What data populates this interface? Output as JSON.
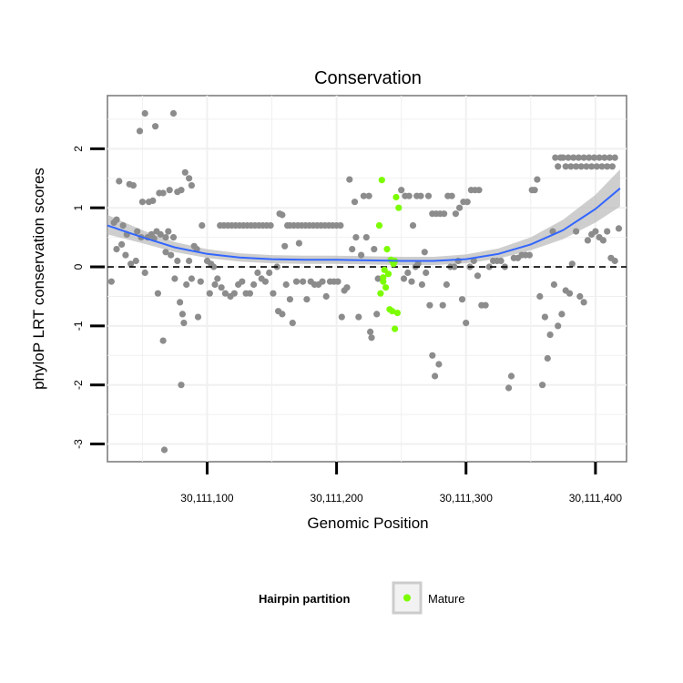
{
  "chart_data": {
    "type": "scatter",
    "title": "Conservation",
    "xlabel": "Genomic Position",
    "ylabel": "phyloP LRT conservation scores",
    "xlim": [
      30111023,
      30111424
    ],
    "ylim": [
      -3.3,
      2.9
    ],
    "x_ticks": [
      30111100,
      30111200,
      30111300,
      30111400
    ],
    "x_tick_labels": [
      "30,111,100",
      "30,111,200",
      "30,111,300",
      "30,111,400"
    ],
    "y_ticks": [
      -3,
      -2,
      -1,
      0,
      1,
      2
    ],
    "y_tick_labels": [
      "-3",
      "-2",
      "-1",
      "0",
      "1",
      "2"
    ],
    "grid": true,
    "reference_line": {
      "y": 0,
      "style": "dashed"
    },
    "legend": {
      "title": "Hairpin partition",
      "placement": "bottom",
      "entries": [
        {
          "label": "Mature",
          "color": "#7cfc00"
        }
      ]
    },
    "colors": {
      "background_points": "#8c8c8c",
      "mature_points": "#7cfc00",
      "smooth_line": "#3366ff",
      "confidence_band": "#bdbdbd"
    },
    "smooth": {
      "x": [
        30111023,
        30111050,
        30111075,
        30111100,
        30111125,
        30111150,
        30111175,
        30111200,
        30111225,
        30111250,
        30111275,
        30111300,
        30111325,
        30111350,
        30111375,
        30111400,
        30111419
      ],
      "y": [
        0.7,
        0.5,
        0.33,
        0.22,
        0.16,
        0.13,
        0.12,
        0.12,
        0.11,
        0.1,
        0.1,
        0.13,
        0.22,
        0.38,
        0.62,
        0.98,
        1.33
      ],
      "lower": [
        0.55,
        0.4,
        0.25,
        0.15,
        0.09,
        0.06,
        0.05,
        0.05,
        0.04,
        0.03,
        0.03,
        0.06,
        0.14,
        0.28,
        0.47,
        0.75,
        1.02
      ],
      "upper": [
        0.88,
        0.62,
        0.42,
        0.3,
        0.23,
        0.2,
        0.19,
        0.19,
        0.18,
        0.17,
        0.17,
        0.21,
        0.31,
        0.5,
        0.8,
        1.22,
        1.65
      ]
    },
    "series": [
      {
        "name": "Mature",
        "points": [
          [
            30111233,
            0.7
          ],
          [
            30111235,
            1.47
          ],
          [
            30111239,
            0.3
          ],
          [
            30111242,
            0.12
          ],
          [
            30111246,
            1.18
          ],
          [
            30111248,
            1.0
          ],
          [
            30111245,
            0.1
          ],
          [
            30111236,
            -0.25
          ],
          [
            30111234,
            -0.45
          ],
          [
            30111238,
            -0.35
          ],
          [
            30111240,
            -0.12
          ],
          [
            30111237,
            -0.05
          ],
          [
            30111241,
            -0.72
          ],
          [
            30111243,
            -0.75
          ],
          [
            30111245,
            -1.05
          ],
          [
            30111247,
            -0.78
          ],
          [
            30111236,
            -0.18
          ],
          [
            30111244,
            0.05
          ]
        ]
      },
      {
        "name": "",
        "points": [
          [
            30111028,
            0.75
          ],
          [
            30111030,
            0.8
          ],
          [
            30111032,
            1.45
          ],
          [
            30111035,
            0.7
          ],
          [
            30111038,
            0.55
          ],
          [
            30111040,
            1.4
          ],
          [
            30111043,
            1.38
          ],
          [
            30111046,
            0.6
          ],
          [
            30111048,
            2.3
          ],
          [
            30111050,
            1.1
          ],
          [
            30111052,
            2.6
          ],
          [
            30111055,
            1.1
          ],
          [
            30111058,
            1.12
          ],
          [
            30111060,
            2.38
          ],
          [
            30111063,
            1.25
          ],
          [
            30111066,
            1.25
          ],
          [
            30111068,
            0.5
          ],
          [
            30111071,
            1.3
          ],
          [
            30111074,
            2.6
          ],
          [
            30111077,
            1.27
          ],
          [
            30111080,
            1.3
          ],
          [
            30111083,
            1.6
          ],
          [
            30111086,
            1.5
          ],
          [
            30111088,
            1.38
          ],
          [
            30111026,
            -0.25
          ],
          [
            30111030,
            0.3
          ],
          [
            30111034,
            0.38
          ],
          [
            30111037,
            0.2
          ],
          [
            30111041,
            0.05
          ],
          [
            30111045,
            0.1
          ],
          [
            30111049,
            0.5
          ],
          [
            30111052,
            -0.1
          ],
          [
            30111054,
            0.5
          ],
          [
            30111057,
            0.55
          ],
          [
            30111059,
            0.48
          ],
          [
            30111061,
            0.6
          ],
          [
            30111062,
            -0.45
          ],
          [
            30111064,
            0.55
          ],
          [
            30111066,
            -1.25
          ],
          [
            30111068,
            0.25
          ],
          [
            30111070,
            0.6
          ],
          [
            30111072,
            0.2
          ],
          [
            30111074,
            0.5
          ],
          [
            30111075,
            -0.2
          ],
          [
            30111077,
            0.1
          ],
          [
            30111079,
            -0.6
          ],
          [
            30111080,
            -2.0
          ],
          [
            30111081,
            -0.8
          ],
          [
            30111082,
            -0.95
          ],
          [
            30111084,
            -0.3
          ],
          [
            30111086,
            0.1
          ],
          [
            30111088,
            -0.2
          ],
          [
            30111090,
            0.35
          ],
          [
            30111092,
            0.3
          ],
          [
            30111093,
            -0.85
          ],
          [
            30111095,
            -0.25
          ],
          [
            30111096,
            0.7
          ],
          [
            30111067,
            -3.1
          ],
          [
            30111100,
            0.1
          ],
          [
            30111103,
            0.05
          ],
          [
            30111105,
            0.0
          ],
          [
            30111108,
            -0.2
          ],
          [
            30111110,
            0.7
          ],
          [
            30111113,
            0.7
          ],
          [
            30111116,
            0.7
          ],
          [
            30111119,
            0.7
          ],
          [
            30111122,
            0.7
          ],
          [
            30111125,
            0.7
          ],
          [
            30111128,
            0.7
          ],
          [
            30111131,
            0.7
          ],
          [
            30111134,
            0.7
          ],
          [
            30111137,
            0.7
          ],
          [
            30111140,
            0.7
          ],
          [
            30111143,
            0.7
          ],
          [
            30111146,
            0.7
          ],
          [
            30111149,
            0.7
          ],
          [
            30111102,
            -0.45
          ],
          [
            30111106,
            -0.3
          ],
          [
            30111111,
            -0.35
          ],
          [
            30111114,
            -0.45
          ],
          [
            30111118,
            -0.5
          ],
          [
            30111121,
            -0.45
          ],
          [
            30111124,
            -0.3
          ],
          [
            30111127,
            -0.25
          ],
          [
            30111130,
            -0.45
          ],
          [
            30111133,
            -0.45
          ],
          [
            30111136,
            -0.3
          ],
          [
            30111139,
            -0.1
          ],
          [
            30111142,
            -0.2
          ],
          [
            30111145,
            -0.25
          ],
          [
            30111148,
            -0.1
          ],
          [
            30111151,
            -0.45
          ],
          [
            30111154,
            0.0
          ],
          [
            30111156,
            0.9
          ],
          [
            30111158,
            0.88
          ],
          [
            30111160,
            0.35
          ],
          [
            30111162,
            0.7
          ],
          [
            30111164,
            0.7
          ],
          [
            30111167,
            0.7
          ],
          [
            30111170,
            0.7
          ],
          [
            30111173,
            0.7
          ],
          [
            30111176,
            0.7
          ],
          [
            30111179,
            0.7
          ],
          [
            30111182,
            0.7
          ],
          [
            30111185,
            0.7
          ],
          [
            30111188,
            0.7
          ],
          [
            30111191,
            0.7
          ],
          [
            30111194,
            0.7
          ],
          [
            30111197,
            0.7
          ],
          [
            30111200,
            0.7
          ],
          [
            30111203,
            0.7
          ],
          [
            30111155,
            -0.75
          ],
          [
            30111158,
            -0.8
          ],
          [
            30111161,
            -0.3
          ],
          [
            30111164,
            -0.55
          ],
          [
            30111166,
            -0.95
          ],
          [
            30111169,
            -0.25
          ],
          [
            30111171,
            0.4
          ],
          [
            30111174,
            -0.25
          ],
          [
            30111177,
            -0.55
          ],
          [
            30111180,
            -0.25
          ],
          [
            30111183,
            -0.3
          ],
          [
            30111186,
            -0.3
          ],
          [
            30111189,
            -0.25
          ],
          [
            30111192,
            -0.5
          ],
          [
            30111195,
            -0.25
          ],
          [
            30111198,
            -0.25
          ],
          [
            30111201,
            -0.25
          ],
          [
            30111204,
            -0.85
          ],
          [
            30111206,
            -0.4
          ],
          [
            30111208,
            -0.35
          ],
          [
            30111210,
            1.48
          ],
          [
            30111212,
            0.3
          ],
          [
            30111214,
            1.1
          ],
          [
            30111215,
            0.5
          ],
          [
            30111217,
            -0.85
          ],
          [
            30111219,
            0.2
          ],
          [
            30111221,
            1.2
          ],
          [
            30111223,
            0.5
          ],
          [
            30111225,
            1.2
          ],
          [
            30111226,
            -1.1
          ],
          [
            30111227,
            -1.2
          ],
          [
            30111229,
            0.3
          ],
          [
            30111231,
            -0.8
          ],
          [
            30111232,
            -0.2
          ],
          [
            30111250,
            1.3
          ],
          [
            30111253,
            1.2
          ],
          [
            30111256,
            1.2
          ],
          [
            30111259,
            0.7
          ],
          [
            30111262,
            1.2
          ],
          [
            30111265,
            1.2
          ],
          [
            30111268,
            0.25
          ],
          [
            30111271,
            1.2
          ],
          [
            30111274,
            0.9
          ],
          [
            30111277,
            0.9
          ],
          [
            30111280,
            0.9
          ],
          [
            30111283,
            0.9
          ],
          [
            30111286,
            1.2
          ],
          [
            30111289,
            1.2
          ],
          [
            30111292,
            0.9
          ],
          [
            30111295,
            1.0
          ],
          [
            30111298,
            1.1
          ],
          [
            30111301,
            1.1
          ],
          [
            30111304,
            1.3
          ],
          [
            30111307,
            1.3
          ],
          [
            30111310,
            1.3
          ],
          [
            30111252,
            -0.2
          ],
          [
            30111255,
            -0.1
          ],
          [
            30111258,
            -0.25
          ],
          [
            30111261,
            0.0
          ],
          [
            30111263,
            0.05
          ],
          [
            30111266,
            -0.3
          ],
          [
            30111269,
            -0.1
          ],
          [
            30111272,
            -0.65
          ],
          [
            30111274,
            -1.5
          ],
          [
            30111276,
            -1.85
          ],
          [
            30111279,
            -1.65
          ],
          [
            30111282,
            -0.65
          ],
          [
            30111285,
            -0.3
          ],
          [
            30111288,
            0.0
          ],
          [
            30111291,
            0.0
          ],
          [
            30111294,
            0.1
          ],
          [
            30111297,
            -0.55
          ],
          [
            30111300,
            -0.95
          ],
          [
            30111303,
            0.0
          ],
          [
            30111306,
            0.1
          ],
          [
            30111309,
            -0.15
          ],
          [
            30111312,
            -0.65
          ],
          [
            30111315,
            -0.65
          ],
          [
            30111318,
            0.0
          ],
          [
            30111321,
            0.1
          ],
          [
            30111324,
            0.1
          ],
          [
            30111327,
            0.1
          ],
          [
            30111330,
            0.0
          ],
          [
            30111333,
            -2.05
          ],
          [
            30111335,
            -1.85
          ],
          [
            30111337,
            0.15
          ],
          [
            30111340,
            0.15
          ],
          [
            30111343,
            0.2
          ],
          [
            30111346,
            0.2
          ],
          [
            30111349,
            0.2
          ],
          [
            30111351,
            1.3
          ],
          [
            30111353,
            1.3
          ],
          [
            30111355,
            1.48
          ],
          [
            30111357,
            -0.5
          ],
          [
            30111359,
            -2.0
          ],
          [
            30111361,
            -0.85
          ],
          [
            30111363,
            -1.55
          ],
          [
            30111365,
            -1.15
          ],
          [
            30111367,
            0.6
          ],
          [
            30111369,
            1.85
          ],
          [
            30111371,
            1.7
          ],
          [
            30111373,
            1.85
          ],
          [
            30111375,
            1.85
          ],
          [
            30111377,
            1.7
          ],
          [
            30111379,
            1.85
          ],
          [
            30111381,
            1.7
          ],
          [
            30111383,
            1.85
          ],
          [
            30111385,
            1.7
          ],
          [
            30111387,
            1.85
          ],
          [
            30111389,
            1.7
          ],
          [
            30111391,
            1.85
          ],
          [
            30111393,
            1.7
          ],
          [
            30111395,
            1.85
          ],
          [
            30111397,
            1.7
          ],
          [
            30111399,
            1.85
          ],
          [
            30111401,
            1.7
          ],
          [
            30111403,
            1.85
          ],
          [
            30111405,
            1.7
          ],
          [
            30111407,
            1.85
          ],
          [
            30111409,
            1.7
          ],
          [
            30111411,
            1.85
          ],
          [
            30111413,
            1.7
          ],
          [
            30111415,
            1.85
          ],
          [
            30111368,
            -0.3
          ],
          [
            30111371,
            -1.0
          ],
          [
            30111374,
            -0.8
          ],
          [
            30111377,
            -0.4
          ],
          [
            30111380,
            -0.45
          ],
          [
            30111382,
            0.05
          ],
          [
            30111385,
            0.6
          ],
          [
            30111388,
            -0.5
          ],
          [
            30111391,
            -0.6
          ],
          [
            30111394,
            0.45
          ],
          [
            30111397,
            0.55
          ],
          [
            30111400,
            0.6
          ],
          [
            30111403,
            0.5
          ],
          [
            30111406,
            0.45
          ],
          [
            30111409,
            0.6
          ],
          [
            30111412,
            0.15
          ],
          [
            30111415,
            0.1
          ],
          [
            30111418,
            0.65
          ]
        ]
      }
    ]
  }
}
